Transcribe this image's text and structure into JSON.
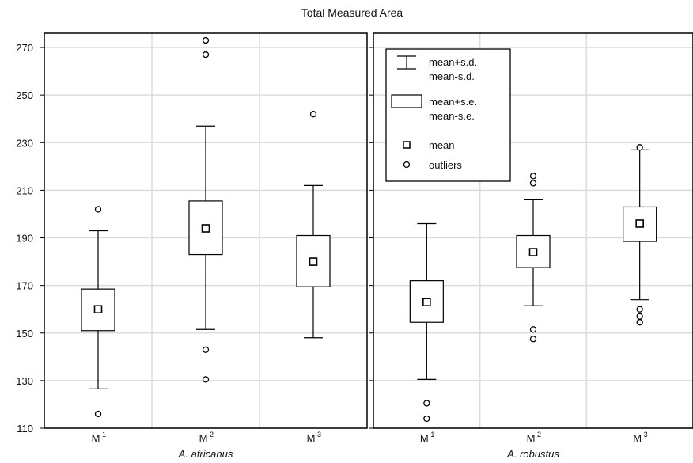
{
  "chart_data": {
    "type": "box",
    "title": "Total Measured Area",
    "ylim": [
      110,
      276
    ],
    "yticks": [
      110,
      130,
      150,
      170,
      190,
      210,
      230,
      250,
      270
    ],
    "grid": true,
    "legend_position": "top-left of right panel",
    "legend": [
      {
        "symbol": "whisker",
        "lines": [
          "mean+s.d.",
          "mean-s.d."
        ]
      },
      {
        "symbol": "box",
        "lines": [
          "mean+s.e.",
          "mean-s.e."
        ]
      },
      {
        "symbol": "square",
        "lines": [
          "mean"
        ]
      },
      {
        "symbol": "circle",
        "lines": [
          "outliers"
        ]
      }
    ],
    "panels": [
      {
        "group": "A. africanus",
        "categories": [
          {
            "label": "M",
            "sup": "1",
            "mean": 160,
            "se_low": 151,
            "se_high": 168.5,
            "sd_low": 126.5,
            "sd_high": 193,
            "outliers": [
              202,
              116
            ]
          },
          {
            "label": "M",
            "sup": "2",
            "mean": 194,
            "se_low": 183,
            "se_high": 205.5,
            "sd_low": 151.5,
            "sd_high": 237,
            "outliers": [
              273,
              267,
              143,
              130.5
            ]
          },
          {
            "label": "M",
            "sup": "3",
            "mean": 180,
            "se_low": 169.5,
            "se_high": 191,
            "sd_low": 148,
            "sd_high": 212,
            "outliers": [
              242
            ]
          }
        ]
      },
      {
        "group": "A. robustus",
        "categories": [
          {
            "label": "M",
            "sup": "1",
            "mean": 163,
            "se_low": 154.5,
            "se_high": 172,
            "sd_low": 130.5,
            "sd_high": 196,
            "outliers": [
              120.5,
              114
            ]
          },
          {
            "label": "M",
            "sup": "2",
            "mean": 184,
            "se_low": 177.5,
            "se_high": 191,
            "sd_low": 161.5,
            "sd_high": 206,
            "outliers": [
              216,
              213,
              151.5,
              147.5
            ]
          },
          {
            "label": "M",
            "sup": "3",
            "mean": 196,
            "se_low": 188.5,
            "se_high": 203,
            "sd_low": 164,
            "sd_high": 227,
            "outliers": [
              228,
              160,
              157,
              154.5
            ]
          }
        ]
      }
    ]
  }
}
